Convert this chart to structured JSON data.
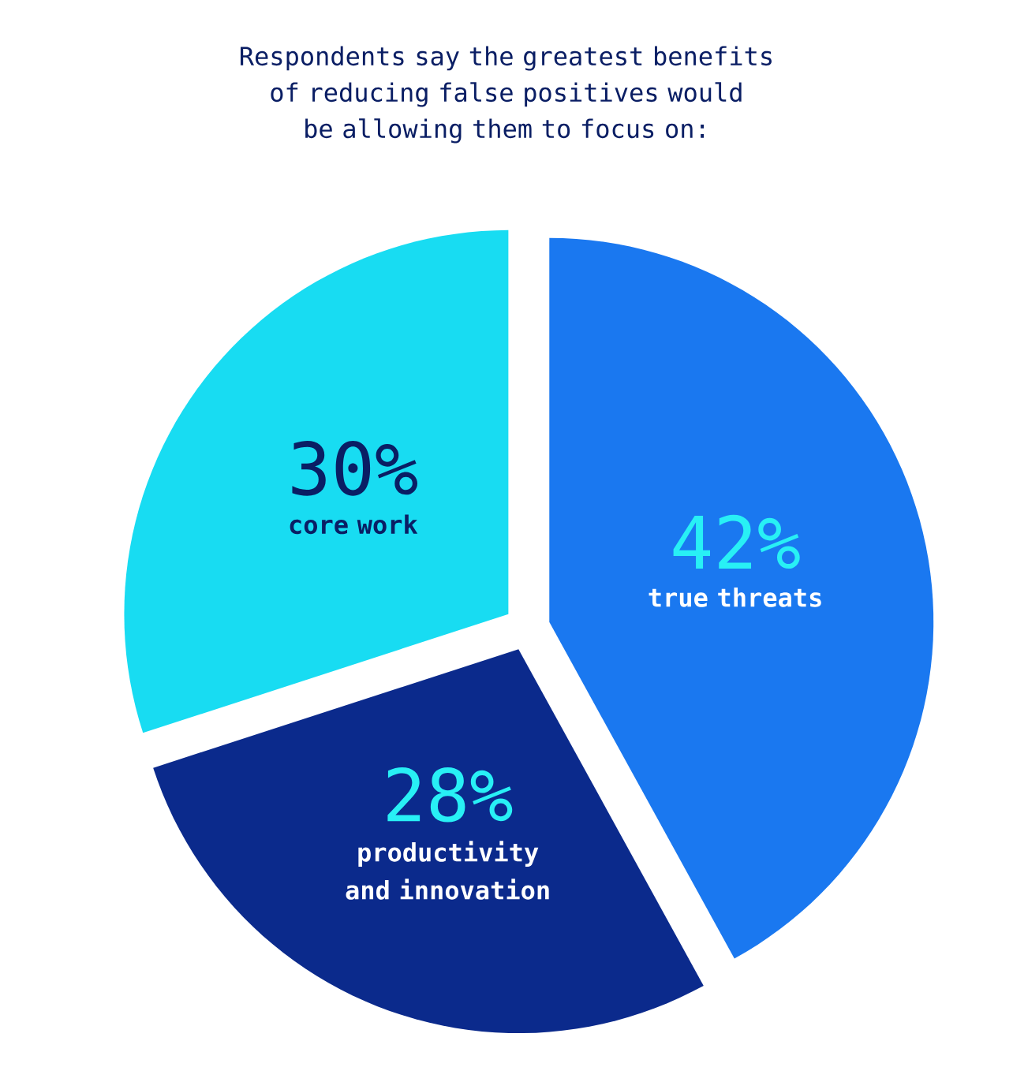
{
  "chart_data": {
    "type": "pie",
    "title": "Respondents say the greatest benefits of reducing false positives would be allowing them to focus on:",
    "categories": [
      "true threats",
      "productivity and innovation",
      "core work"
    ],
    "values": [
      42,
      28,
      30
    ],
    "colors": [
      "#1a78f0",
      "#0b2a8c",
      "#18dcf2"
    ],
    "value_labels": [
      "42%",
      "28%",
      "30%"
    ]
  }
}
